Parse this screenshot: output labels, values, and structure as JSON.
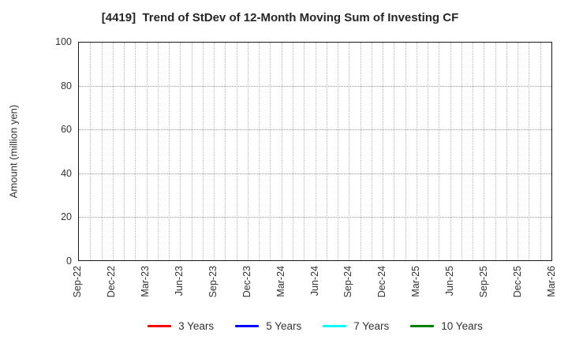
{
  "chart_data": {
    "type": "line",
    "title": "[4419]  Trend of StDev of 12-Month Moving Sum of Investing CF",
    "xlabel": "",
    "ylabel": "Amount (million yen)",
    "ylim": [
      0,
      100
    ],
    "yticks": [
      0,
      20,
      40,
      60,
      80,
      100
    ],
    "xtick_labels": [
      "Sep-22",
      "Dec-22",
      "Mar-23",
      "Jun-23",
      "Sep-23",
      "Dec-23",
      "Mar-24",
      "Jun-24",
      "Sep-24",
      "Dec-24",
      "Mar-25",
      "Jun-25",
      "Sep-25",
      "Dec-25",
      "Mar-26"
    ],
    "x_total_months": 42,
    "months_per_labeled_tick": 3,
    "grid": true,
    "grid_style": "dotted",
    "legend_position": "bottom",
    "series": [
      {
        "name": "3 Years",
        "color": "#ff0000",
        "values": []
      },
      {
        "name": "5 Years",
        "color": "#0000ff",
        "values": []
      },
      {
        "name": "7 Years",
        "color": "#00ffff",
        "values": []
      },
      {
        "name": "10 Years",
        "color": "#008000",
        "values": []
      }
    ]
  },
  "colors": {
    "background": "#ffffff",
    "axis_frame": "#1a1a1a",
    "grid_horizontal": "#979797",
    "grid_vertical": "#bdbdbd",
    "text": "#333333",
    "title_text": "#262626"
  }
}
